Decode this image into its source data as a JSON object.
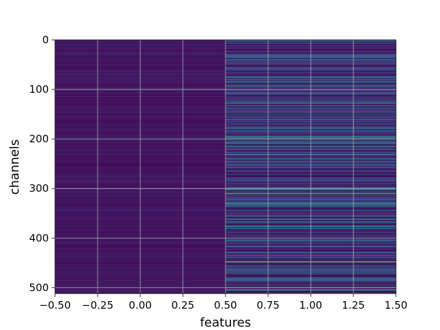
{
  "chart_data": {
    "type": "heatmap",
    "title": "",
    "xlabel": "features",
    "ylabel": "channels",
    "xlim": [
      -0.5,
      1.5
    ],
    "ylim": [
      512,
      0
    ],
    "x_categories": [
      0,
      1
    ],
    "xticks": [
      "−0.50",
      "−0.25",
      "0.00",
      "0.25",
      "0.50",
      "0.75",
      "1.00",
      "1.25",
      "1.50"
    ],
    "yticks": [
      "0",
      "100",
      "200",
      "300",
      "400",
      "500"
    ],
    "grid": true,
    "colormap": "viridis",
    "column0_value": "uniformly low (dark purple) across all 512 channels",
    "column1_highlights": [
      {
        "channel": 128,
        "level": 0.5
      },
      {
        "channel": 195,
        "level": 0.55
      },
      {
        "channel": 215,
        "level": 0.6
      },
      {
        "channel": 240,
        "level": 0.5
      },
      {
        "channel": 310,
        "level": 0.8
      },
      {
        "channel": 330,
        "level": 0.55
      },
      {
        "channel": 448,
        "level": 0.85
      },
      {
        "channel": 495,
        "level": 0.55
      },
      {
        "channel": 500,
        "level": 0.6
      },
      {
        "channel": 505,
        "level": 0.55
      }
    ],
    "colors": {
      "low": "#440154",
      "mid_low": "#3b528b",
      "mid": "#21918c",
      "mid_high": "#5ec962",
      "high": "#fde725",
      "grid": "#b0b0b0"
    }
  }
}
